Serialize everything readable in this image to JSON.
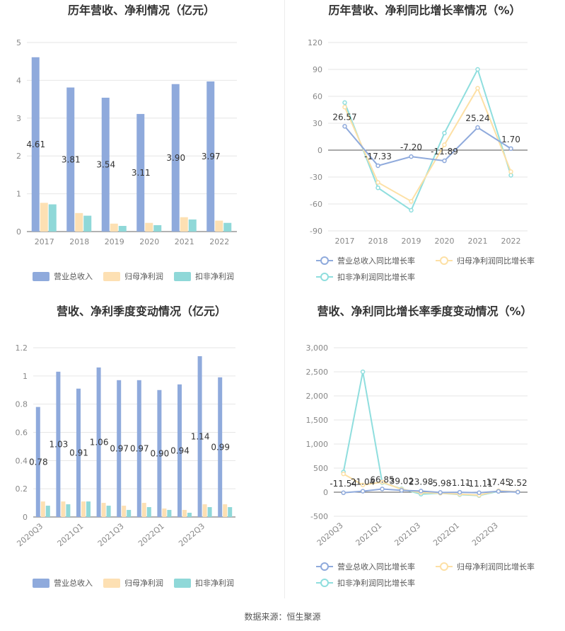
{
  "footer": "数据来源：恒生聚源",
  "colors": {
    "revenue": "#8faadc",
    "parent_profit": "#fde0b3",
    "deducted_profit": "#8fd8d8",
    "revenue_line": "#8faadc",
    "parent_line": "#fde0a5",
    "deducted_line": "#8fdede"
  },
  "chart_data": [
    {
      "type": "bar",
      "title": "历年营收、净利情况（亿元）",
      "categories": [
        "2017",
        "2018",
        "2019",
        "2020",
        "2021",
        "2022"
      ],
      "ylim": [
        0,
        5
      ],
      "yticks": [
        "0",
        "1",
        "2",
        "3",
        "4",
        "5"
      ],
      "series": [
        {
          "name": "营业总收入",
          "values": [
            4.61,
            3.81,
            3.54,
            3.11,
            3.9,
            3.97
          ],
          "labels": [
            "4.61",
            "3.81",
            "3.54",
            "3.11",
            "3.90",
            "3.97"
          ]
        },
        {
          "name": "归母净利润",
          "values": [
            0.76,
            0.49,
            0.21,
            0.23,
            0.38,
            0.29
          ]
        },
        {
          "name": "扣非净利润",
          "values": [
            0.72,
            0.42,
            0.15,
            0.17,
            0.32,
            0.23
          ]
        }
      ],
      "legend": "bottom"
    },
    {
      "type": "line",
      "title": "历年营收、净利同比增长率情况（%）",
      "categories": [
        "2017",
        "2018",
        "2019",
        "2020",
        "2021",
        "2022"
      ],
      "ylim": [
        -90,
        120
      ],
      "yticks": [
        "120",
        "90",
        "60",
        "30",
        "0",
        "-30",
        "-60",
        "-90"
      ],
      "series": [
        {
          "name": "营业总收入同比增长率",
          "values": [
            26.57,
            -17.33,
            -7.2,
            -11.89,
            25.24,
            1.7
          ],
          "labels": [
            "26.57",
            "-17.33",
            "-7.20",
            "-11.89",
            "25.24",
            "1.70"
          ]
        },
        {
          "name": "归母净利润同比增长率",
          "values": [
            48,
            -36,
            -57,
            6,
            69,
            -24
          ]
        },
        {
          "name": "扣非净利润同比增长率",
          "values": [
            53,
            -42,
            -67,
            19,
            90,
            -28
          ]
        }
      ],
      "legend": "bottom"
    },
    {
      "type": "bar",
      "title": "营收、净利季度变动情况（亿元）",
      "categories": [
        "2020Q3",
        "2020Q4",
        "2021Q1",
        "2021Q2",
        "2021Q3",
        "2021Q4",
        "2022Q1",
        "2022Q2",
        "2022Q3",
        "2022Q4"
      ],
      "xtick_labels": [
        "2020Q3",
        "2021Q1",
        "2021Q3",
        "2022Q1",
        "2022Q3"
      ],
      "ylim": [
        0,
        1.2
      ],
      "yticks": [
        "0",
        "0.2",
        "0.4",
        "0.6",
        "0.8",
        "1",
        "1.2"
      ],
      "series": [
        {
          "name": "营业总收入",
          "values": [
            0.78,
            1.03,
            0.91,
            1.06,
            0.97,
            0.97,
            0.9,
            0.94,
            1.14,
            0.99
          ],
          "labels": [
            "0.78",
            "1.03",
            "0.91",
            "1.06",
            "0.97",
            "0.97",
            "0.90",
            "0.94",
            "1.14",
            "0.99"
          ]
        },
        {
          "name": "归母净利润",
          "values": [
            0.11,
            0.11,
            0.11,
            0.1,
            0.08,
            0.1,
            0.06,
            0.05,
            0.09,
            0.09
          ]
        },
        {
          "name": "扣非净利润",
          "values": [
            0.08,
            0.09,
            0.11,
            0.08,
            0.05,
            0.07,
            0.05,
            0.03,
            0.07,
            0.07
          ]
        }
      ],
      "legend": "bottom"
    },
    {
      "type": "line",
      "title": "营收、净利同比增长率季度变动情况（%）",
      "categories": [
        "2020Q3",
        "2020Q4",
        "2021Q1",
        "2021Q2",
        "2021Q3",
        "2021Q4",
        "2022Q1",
        "2022Q2",
        "2022Q3",
        "2022Q4"
      ],
      "xtick_labels": [
        "2020Q3",
        "2021Q1",
        "2021Q3",
        "2022Q1",
        "2022Q3"
      ],
      "ylim": [
        -500,
        3000
      ],
      "yticks": [
        "3,000",
        "2,500",
        "2,000",
        "1,500",
        "1,000",
        "500",
        "0",
        "-500"
      ],
      "series": [
        {
          "name": "营业总收入同比增长率",
          "values": [
            -11.54,
            21.04,
            66.85,
            39.02,
            23.98,
            -5.98,
            -1.11,
            -11.11,
            17.45,
            2.52
          ],
          "labels": [
            "-11.54",
            "21.04",
            "66.85",
            "39.02",
            "23.98",
            "-5.98",
            "-1.11",
            "-11.11",
            "17.45",
            "2.52"
          ]
        },
        {
          "name": "归母净利润同比增长率",
          "values": [
            380,
            150,
            210,
            60,
            -10,
            -20,
            -40,
            -60,
            30,
            10
          ]
        },
        {
          "name": "扣非净利润同比增长率",
          "values": [
            420,
            2500,
            200,
            70,
            -40,
            -20,
            -50,
            -70,
            20,
            5
          ]
        }
      ],
      "legend": "bottom"
    }
  ]
}
